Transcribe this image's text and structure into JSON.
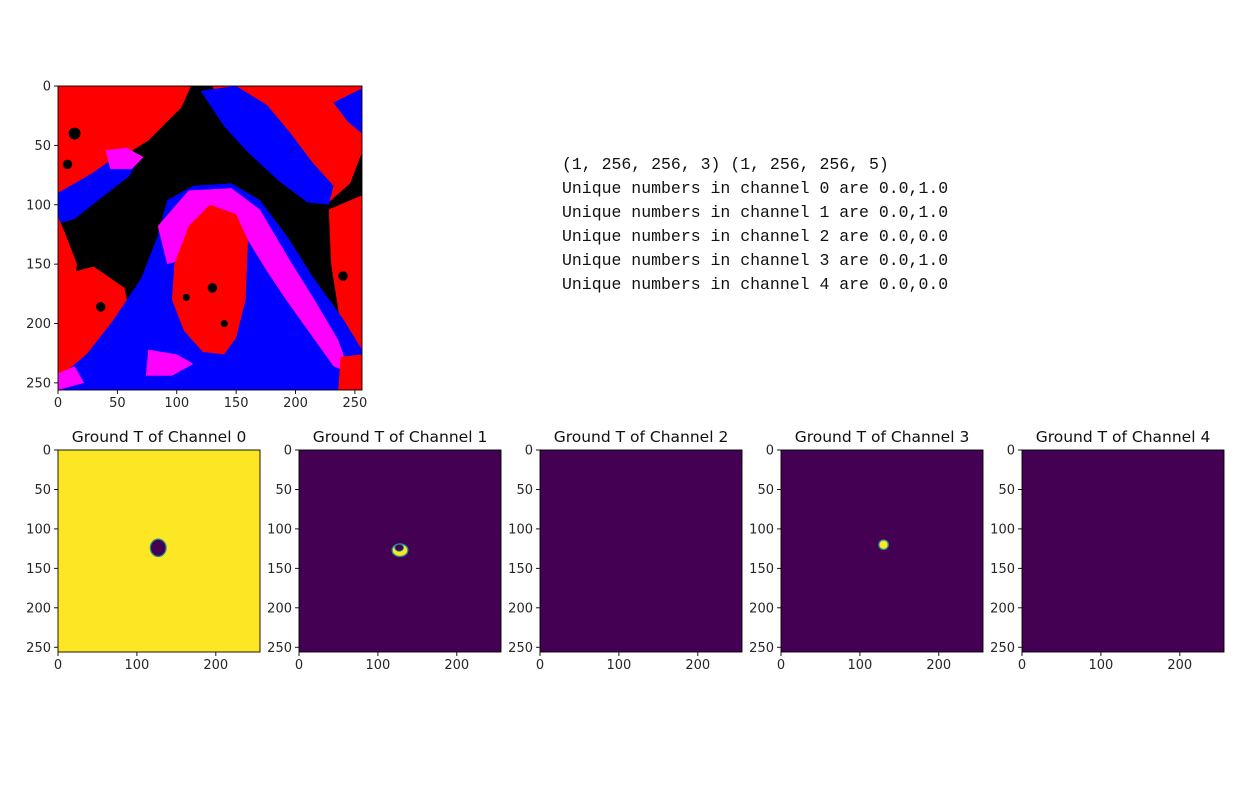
{
  "output_lines": [
    "(1, 256, 256, 3) (1, 256, 256, 5)",
    "Unique numbers in channel 0 are 0.0,1.0",
    "Unique numbers in channel 1 are 0.0,1.0",
    "Unique numbers in channel 2 are 0.0,0.0",
    "Unique numbers in channel 3 are 0.0,1.0",
    "Unique numbers in channel 4 are 0.0,0.0"
  ],
  "colors": {
    "viridis_low": "#440154",
    "viridis_high": "#fde725",
    "viridis_mid": "#21908d",
    "rgb_red": "#ff0000",
    "rgb_blue": "#0000ff",
    "rgb_magenta": "#ff00ff",
    "rgb_black": "#000000"
  },
  "chart_data": [
    {
      "type": "heatmap",
      "id": "input-image",
      "title": "",
      "colormap": "rgb",
      "xlim": [
        0,
        256
      ],
      "ylim": [
        256,
        0
      ],
      "xticks": [
        0,
        50,
        100,
        150,
        200,
        250
      ],
      "yticks": [
        0,
        50,
        100,
        150,
        200,
        250
      ]
    },
    {
      "type": "heatmap",
      "id": "channel-0",
      "title": "Ground T of Channel 0",
      "colormap": "viridis",
      "background_value": 1,
      "xlim": [
        0,
        256
      ],
      "ylim": [
        256,
        0
      ],
      "xticks": [
        0,
        100,
        200
      ],
      "yticks": [
        0,
        50,
        100,
        150,
        200,
        250
      ],
      "region": {
        "value": 0,
        "center": [
          127,
          124
        ],
        "size": [
          20,
          22
        ]
      }
    },
    {
      "type": "heatmap",
      "id": "channel-1",
      "title": "Ground T of Channel 1",
      "colormap": "viridis",
      "background_value": 0,
      "xlim": [
        0,
        256
      ],
      "ylim": [
        256,
        0
      ],
      "xticks": [
        0,
        100,
        200
      ],
      "yticks": [
        0,
        50,
        100,
        150,
        200,
        250
      ],
      "region": {
        "value": 1,
        "center": [
          128,
          127
        ],
        "size": [
          20,
          16
        ]
      }
    },
    {
      "type": "heatmap",
      "id": "channel-2",
      "title": "Ground T of Channel 2",
      "colormap": "viridis",
      "background_value": 0,
      "xlim": [
        0,
        256
      ],
      "ylim": [
        256,
        0
      ],
      "xticks": [
        0,
        100,
        200
      ],
      "yticks": [
        0,
        50,
        100,
        150,
        200,
        250
      ]
    },
    {
      "type": "heatmap",
      "id": "channel-3",
      "title": "Ground T of Channel 3",
      "colormap": "viridis",
      "background_value": 0,
      "xlim": [
        0,
        256
      ],
      "ylim": [
        256,
        0
      ],
      "xticks": [
        0,
        100,
        200
      ],
      "yticks": [
        0,
        50,
        100,
        150,
        200,
        250
      ],
      "region": {
        "value": 1,
        "center": [
          130,
          120
        ],
        "size": [
          12,
          12
        ]
      }
    },
    {
      "type": "heatmap",
      "id": "channel-4",
      "title": "Ground T of Channel 4",
      "colormap": "viridis",
      "background_value": 0,
      "xlim": [
        0,
        256
      ],
      "ylim": [
        256,
        0
      ],
      "xticks": [
        0,
        100,
        200
      ],
      "yticks": [
        0,
        50,
        100,
        150,
        200,
        250
      ]
    }
  ]
}
